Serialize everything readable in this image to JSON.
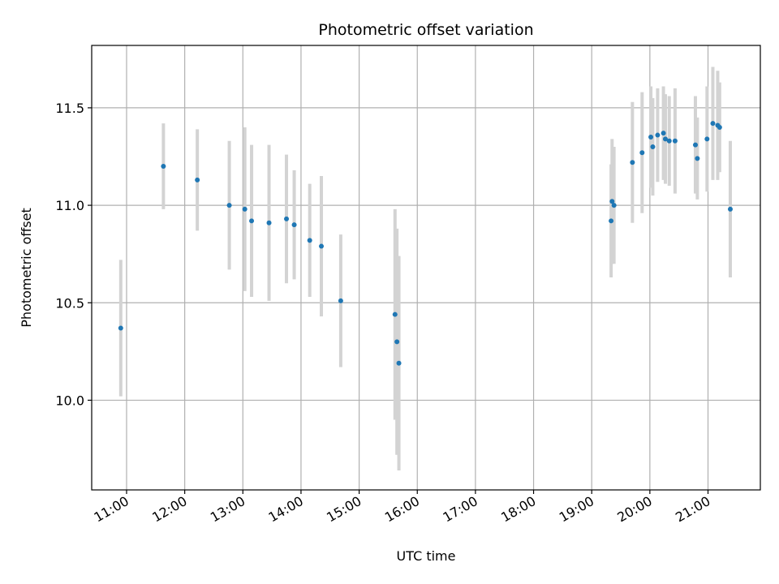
{
  "chart_data": {
    "type": "scatter",
    "title": "Photometric offset variation",
    "xlabel": "UTC time",
    "ylabel": "Photometric offset",
    "x_ticks": [
      "11:00",
      "12:00",
      "13:00",
      "14:00",
      "15:00",
      "16:00",
      "17:00",
      "18:00",
      "19:00",
      "20:00",
      "21:00"
    ],
    "y_ticks": [
      "10.0",
      "10.5",
      "11.0",
      "11.5"
    ],
    "xlim": [
      "10:24",
      "21:54"
    ],
    "ylim": [
      9.54,
      11.82
    ],
    "grid": true,
    "colors": {
      "point": "#1f77b4",
      "errorbar": "#d3d3d3",
      "grid": "#b0b0b0"
    },
    "points": [
      {
        "x": "10:54",
        "y": 10.37,
        "err": 0.35
      },
      {
        "x": "11:38",
        "y": 11.2,
        "err": 0.22
      },
      {
        "x": "12:13",
        "y": 11.13,
        "err": 0.26
      },
      {
        "x": "12:46",
        "y": 11.0,
        "err": 0.33
      },
      {
        "x": "13:02",
        "y": 10.98,
        "err": 0.42
      },
      {
        "x": "13:09",
        "y": 10.92,
        "err": 0.39
      },
      {
        "x": "13:27",
        "y": 10.91,
        "err": 0.4
      },
      {
        "x": "13:45",
        "y": 10.93,
        "err": 0.33
      },
      {
        "x": "13:53",
        "y": 10.9,
        "err": 0.28
      },
      {
        "x": "14:09",
        "y": 10.82,
        "err": 0.29
      },
      {
        "x": "14:21",
        "y": 10.79,
        "err": 0.36
      },
      {
        "x": "14:41",
        "y": 10.51,
        "err": 0.34
      },
      {
        "x": "15:37",
        "y": 10.44,
        "err": 0.54
      },
      {
        "x": "15:39",
        "y": 10.3,
        "err": 0.58
      },
      {
        "x": "15:41",
        "y": 10.19,
        "err": 0.55
      },
      {
        "x": "19:20",
        "y": 10.92,
        "err": 0.29
      },
      {
        "x": "19:21",
        "y": 11.02,
        "err": 0.32
      },
      {
        "x": "19:23",
        "y": 11.0,
        "err": 0.3
      },
      {
        "x": "19:42",
        "y": 11.22,
        "err": 0.31
      },
      {
        "x": "19:52",
        "y": 11.27,
        "err": 0.31
      },
      {
        "x": "20:01",
        "y": 11.35,
        "err": 0.26
      },
      {
        "x": "20:03",
        "y": 11.3,
        "err": 0.25
      },
      {
        "x": "20:08",
        "y": 11.36,
        "err": 0.24
      },
      {
        "x": "20:14",
        "y": 11.37,
        "err": 0.24
      },
      {
        "x": "20:16",
        "y": 11.34,
        "err": 0.23
      },
      {
        "x": "20:20",
        "y": 11.33,
        "err": 0.23
      },
      {
        "x": "20:26",
        "y": 11.33,
        "err": 0.27
      },
      {
        "x": "20:47",
        "y": 11.31,
        "err": 0.25
      },
      {
        "x": "20:49",
        "y": 11.24,
        "err": 0.21
      },
      {
        "x": "20:59",
        "y": 11.34,
        "err": 0.27
      },
      {
        "x": "21:05",
        "y": 11.42,
        "err": 0.29
      },
      {
        "x": "21:10",
        "y": 11.41,
        "err": 0.28
      },
      {
        "x": "21:12",
        "y": 11.4,
        "err": 0.23
      },
      {
        "x": "21:23",
        "y": 10.98,
        "err": 0.35
      }
    ]
  }
}
